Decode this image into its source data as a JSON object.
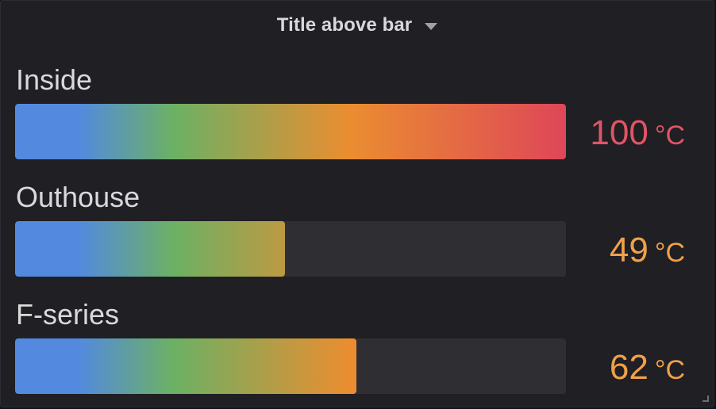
{
  "panel": {
    "title": "Title above bar",
    "menu_icon": "caret-down-icon",
    "resize_icon": "resize-handle-icon"
  },
  "gauge": {
    "min": 0,
    "max": 100,
    "unit": "°C",
    "gradient_colors": [
      "#5794f2",
      "#73bf69",
      "#ff9830",
      "#f2495c"
    ],
    "track_color": "#2f2f33",
    "items": [
      {
        "label": "Inside",
        "value": 100,
        "value_text": "100",
        "unit": "°C",
        "color": "#e05565"
      },
      {
        "label": "Outhouse",
        "value": 49,
        "value_text": "49",
        "unit": "°C",
        "color": "#f1a04a"
      },
      {
        "label": "F-series",
        "value": 62,
        "value_text": "62",
        "unit": "°C",
        "color": "#f1a04a"
      }
    ]
  }
}
